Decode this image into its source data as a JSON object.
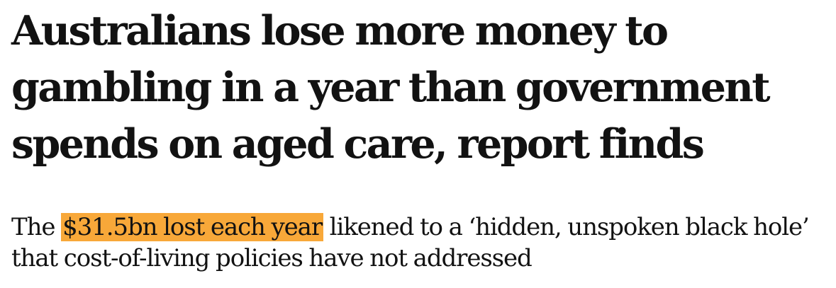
{
  "article": {
    "headline": "Australians lose more money to gambling in a year than government spends on aged care, report finds",
    "standfirst": {
      "lead": "The ",
      "highlight": "$31.5bn lost each year",
      "rest": " likened to a ‘hidden, unspoken black hole’ that cost-of-living policies have not addressed"
    },
    "highlight_color": "#f8a839",
    "text_color": "#121212"
  }
}
